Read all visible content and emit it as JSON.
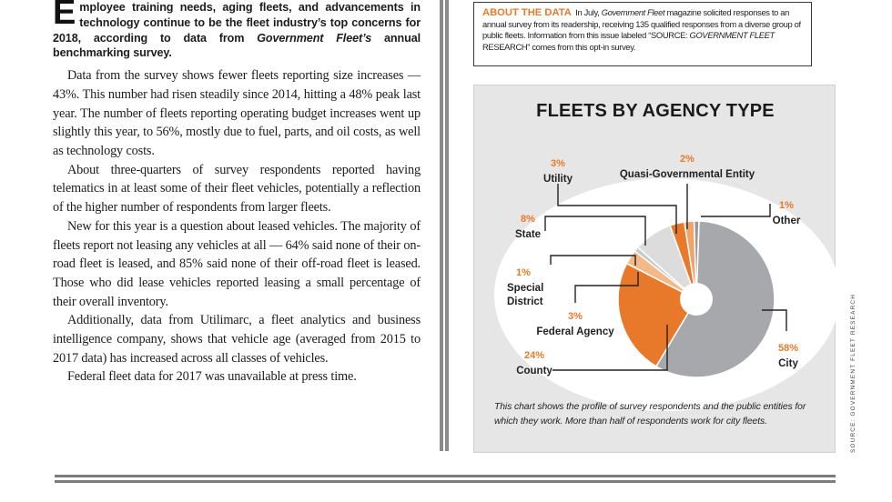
{
  "article": {
    "dropcap": "E",
    "lede_rest": "mployee training needs, aging fleets, and advancements in technology continue to be the fleet industry’s top concerns for 2018, according to data from ",
    "lede_pub": "Government Fleet’s",
    "lede_end": " annual benchmarking survey.",
    "paragraphs": [
      "Data from the survey shows fewer fleets reporting size increases — 43%. This number had risen steadily since 2014, hitting a 48% peak last year. The number of fleets reporting operating budget increases went up slightly this year, to 56%, mostly due to fuel, parts, and oil costs, as well as technology costs.",
      "About three-quarters of survey respondents reported having telematics in at least some of their fleet vehicles, potentially a reflection of the higher number of respondents from larger fleets.",
      "New for this year is a question about leased vehicles. The majority of fleets report not leasing any vehicles at all — 64% said none of their on-road fleet is leased, and 85% said none of their off-road fleet is leased. Those who did lease vehicles reported leasing a small percentage of their overall inventory.",
      "Additionally, data from Utilimarc, a fleet analytics and business intelligence company, shows that vehicle age (averaged from 2015 to 2017 data) has increased across all classes of vehicles.",
      "Federal fleet data for 2017 was unavailable at press time."
    ]
  },
  "about": {
    "heading": "ABOUT THE DATA",
    "text_1": "In July, ",
    "magazine": "Government Fleet",
    "text_2": " magazine solicited responses to an annual survey from its readership, receiving 135 qualified responses from a diverse group of public fleets. Information from this issue labeled “SOURCE: ",
    "source_label": "GOVERNMENT FLEET",
    "text_3": " RESEARCH” comes from this opt-in survey."
  },
  "chart_data": {
    "type": "pie",
    "title": "FLEETS BY AGENCY TYPE",
    "categories": [
      "City",
      "County",
      "Federal Agency",
      "Special District",
      "State",
      "Utility",
      "Quasi-Governmental Entity",
      "Other"
    ],
    "values": [
      58,
      24,
      3,
      1,
      8,
      3,
      2,
      1
    ],
    "labels": [
      "58%",
      "24%",
      "3%",
      "1%",
      "8%",
      "3%",
      "2%",
      "1%"
    ],
    "colors": [
      "#a7a8ab",
      "#e8792a",
      "#f5b987",
      "#c9c9c9",
      "#dcdcdc",
      "#e8792a",
      "#f0a46c",
      "#9a9a9a"
    ],
    "caption": "This chart shows the profile of survey respondents and the public entities for which they work. More than half of respondents work for city fleets.",
    "source": "SOURCE: GOVERNMENT FLEET RESEARCH"
  },
  "colors": {
    "accent": "#e8792a",
    "panel_bg": "#e6e6e6",
    "rule": "#7c7c7c"
  }
}
